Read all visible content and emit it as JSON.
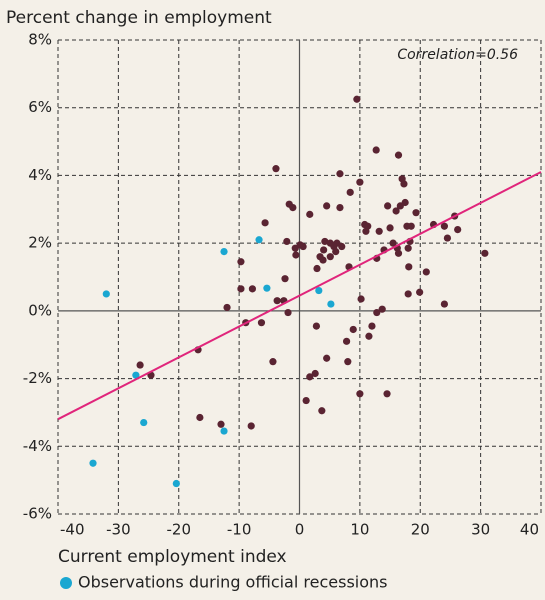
{
  "chart_data": {
    "type": "scatter",
    "title": "Percent change in employment",
    "x_label": "Current employment index",
    "annotation": "Correlation=0.56",
    "xlim": [
      -40,
      40
    ],
    "xticks": [
      -40,
      -30,
      -20,
      -10,
      0,
      10,
      20,
      30,
      40
    ],
    "ylim": [
      -6,
      8
    ],
    "yticks": [
      {
        "value": -6,
        "label": "-6%"
      },
      {
        "value": -4,
        "label": "-4%"
      },
      {
        "value": -2,
        "label": "-2%"
      },
      {
        "value": 0,
        "label": "0%"
      },
      {
        "value": 2,
        "label": "2%"
      },
      {
        "value": 4,
        "label": "4%"
      },
      {
        "value": 6,
        "label": "6%"
      },
      {
        "value": 8,
        "label": "8%"
      }
    ],
    "grid": true,
    "series": [
      {
        "color": "#5a2432",
        "x": [
          -26.4,
          -24.6,
          -16.8,
          -16.5,
          -13.0,
          -12.0,
          -9.7,
          -9.7,
          -7.8,
          -8.0,
          -6.3,
          -5.7,
          -8.9,
          -4.4,
          -3.9,
          -3.7,
          -2.6,
          -2.4,
          -2.1,
          -1.9,
          -1.7,
          -1.1,
          -0.6,
          -0.7,
          0.1,
          0.6,
          1.1,
          1.7,
          1.7,
          2.6,
          2.8,
          2.9,
          3.4,
          3.7,
          4.2,
          4.0,
          4.5,
          3.9,
          4.5,
          5.1,
          5.7,
          5.1,
          6.0,
          6.2,
          6.7,
          6.7,
          7.0,
          7.8,
          8.2,
          8.0,
          8.4,
          8.9,
          9.5,
          10.0,
          10.2,
          10.0,
          10.8,
          11.3,
          11.0,
          11.5,
          12.0,
          12.7,
          12.8,
          12.8,
          13.2,
          13.7,
          14.0,
          14.5,
          14.6,
          15.0,
          15.5,
          16.0,
          16.4,
          16.4,
          16.2,
          16.7,
          17.0,
          17.3,
          17.5,
          17.8,
          18.0,
          18.1,
          18.3,
          18.0,
          18.5,
          19.3,
          19.9,
          21.0,
          22.2,
          24.0,
          24.0,
          24.5,
          25.7,
          26.2,
          30.7
        ],
        "values": [
          -1.6,
          -1.9,
          -1.15,
          -3.15,
          -3.35,
          0.1,
          1.45,
          0.65,
          0.65,
          -3.4,
          -0.35,
          2.6,
          -0.35,
          -1.5,
          4.2,
          0.3,
          0.3,
          0.95,
          2.05,
          -0.05,
          3.15,
          3.05,
          1.65,
          1.85,
          1.95,
          1.9,
          -2.65,
          2.85,
          -1.95,
          -1.85,
          -0.45,
          1.25,
          1.6,
          -2.95,
          2.05,
          1.8,
          3.1,
          1.5,
          -1.4,
          2.0,
          1.9,
          1.6,
          1.75,
          2.0,
          3.05,
          4.05,
          1.9,
          -0.9,
          1.3,
          -1.5,
          3.5,
          -0.55,
          6.25,
          3.8,
          0.35,
          -2.45,
          2.55,
          2.5,
          2.35,
          -0.75,
          -0.45,
          4.75,
          1.55,
          -0.05,
          2.35,
          0.05,
          1.8,
          -2.45,
          3.1,
          2.45,
          2.0,
          2.95,
          4.6,
          1.7,
          1.85,
          3.1,
          3.9,
          3.75,
          3.2,
          2.5,
          0.5,
          1.3,
          2.05,
          1.85,
          2.5,
          2.9,
          0.55,
          1.15,
          2.55,
          2.5,
          0.2,
          2.15,
          2.8,
          2.4,
          1.7
        ]
      },
      {
        "name": "Observations during official recessions",
        "color": "#1aa7d1",
        "x": [
          -32.0,
          -27.1,
          -25.8,
          -34.2,
          -20.4,
          -12.5,
          -12.5,
          -6.7,
          -5.4,
          3.2,
          5.2
        ],
        "values": [
          0.5,
          -1.9,
          -3.3,
          -4.5,
          -5.1,
          1.75,
          -3.55,
          2.1,
          0.67,
          0.6,
          0.2
        ]
      }
    ],
    "trend_line": {
      "x": [
        -40,
        40
      ],
      "values": [
        -3.2,
        4.1
      ],
      "color": "#e0257b"
    }
  }
}
